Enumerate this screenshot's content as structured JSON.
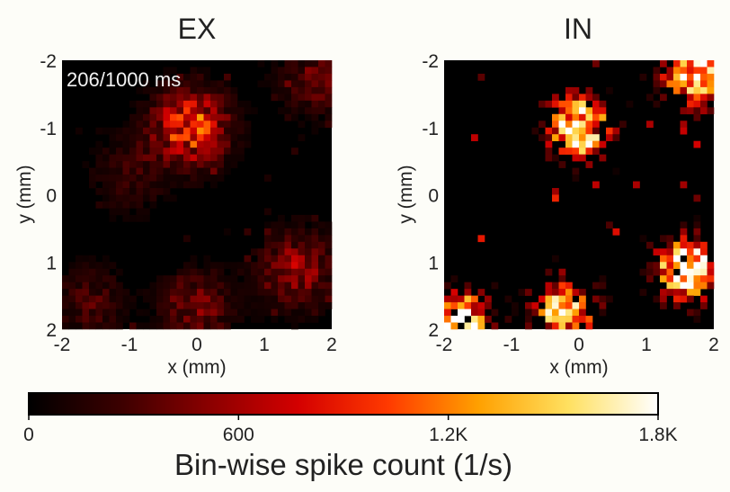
{
  "chart_data": [
    {
      "type": "heatmap",
      "title": "EX",
      "annotation": "206/1000 ms",
      "xlabel": "x (mm)",
      "ylabel": "y (mm)",
      "xlim": [
        -2,
        2
      ],
      "ylim": [
        -2,
        2
      ],
      "y_inverted": true,
      "xticks": [
        "-2",
        "-1",
        "0",
        "1",
        "2"
      ],
      "yticks": [
        "-2",
        "-1",
        "0",
        "1",
        "2"
      ],
      "grid": "40x40 bins",
      "hotspots": [
        {
          "x": -0.1,
          "y": -1.0,
          "peak": 1200
        },
        {
          "x": 1.5,
          "y": 1.1,
          "peak": 650
        },
        {
          "x": 0.0,
          "y": 1.7,
          "peak": 500
        },
        {
          "x": -1.6,
          "y": 1.6,
          "peak": 350
        },
        {
          "x": 1.8,
          "y": -1.7,
          "peak": 420
        },
        {
          "x": -1.0,
          "y": -0.3,
          "peak": 300
        }
      ]
    },
    {
      "type": "heatmap",
      "title": "IN",
      "xlabel": "x (mm)",
      "ylabel": "y (mm)",
      "xlim": [
        -2,
        2
      ],
      "ylim": [
        -2,
        2
      ],
      "y_inverted": true,
      "xticks": [
        "-2",
        "-1",
        "0",
        "1",
        "2"
      ],
      "yticks": [
        "-2",
        "-1",
        "0",
        "1",
        "2"
      ],
      "grid": "40x40 bins",
      "hotspots": [
        {
          "x": 0.0,
          "y": -1.0,
          "peak": 1800
        },
        {
          "x": 1.6,
          "y": 1.1,
          "peak": 1800
        },
        {
          "x": -0.2,
          "y": 1.7,
          "peak": 1500
        },
        {
          "x": 1.7,
          "y": -1.8,
          "peak": 1700
        },
        {
          "x": -1.8,
          "y": 1.9,
          "peak": 1800
        }
      ]
    }
  ],
  "colorbar": {
    "label": "Bin-wise spike count (1/s)",
    "min": 0,
    "max": 1800,
    "ticks": [
      "0",
      "600",
      "1.2K",
      "1.8K"
    ],
    "colormap": "hot",
    "colors": [
      "#000000",
      "#3a0000",
      "#8a0000",
      "#d40000",
      "#ff3a00",
      "#ffa000",
      "#ffe060",
      "#ffffff"
    ]
  }
}
